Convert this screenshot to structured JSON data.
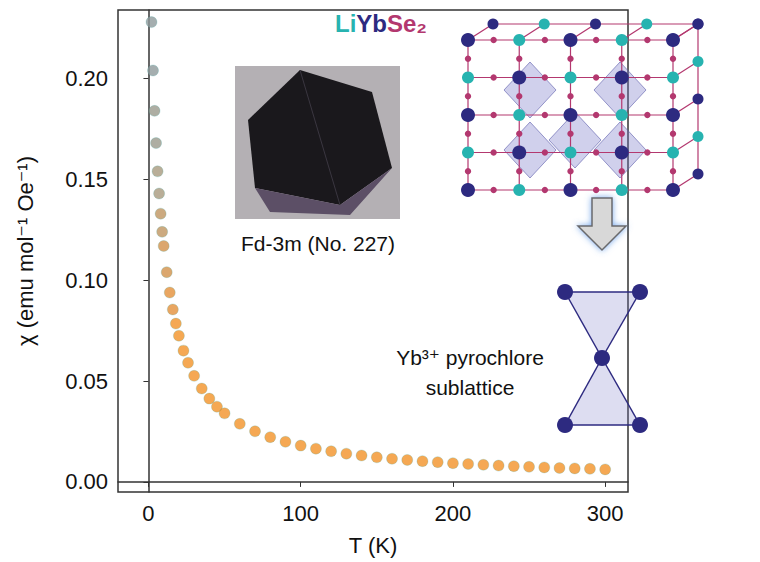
{
  "chart_data": {
    "type": "scatter",
    "title": "LiYbSe₂",
    "x_label": "T (K)",
    "y_label": "χ (emu mol⁻¹ Oe⁻¹)",
    "annotations": [
      "Fd-3m (No. 227)",
      "Yb³⁺ pyrochlore\nsublattice"
    ],
    "x": [
      2,
      3,
      4,
      5,
      6,
      7,
      8,
      9,
      10,
      12,
      14,
      16,
      18,
      20,
      23,
      26,
      30,
      35,
      40,
      45,
      50,
      60,
      70,
      80,
      90,
      100,
      110,
      120,
      130,
      140,
      150,
      160,
      170,
      180,
      190,
      200,
      210,
      220,
      230,
      240,
      250,
      260,
      270,
      280,
      290,
      300
    ],
    "values": [
      0.228,
      0.204,
      0.184,
      0.168,
      0.154,
      0.143,
      0.133,
      0.124,
      0.117,
      0.104,
      0.0939,
      0.0855,
      0.0785,
      0.0725,
      0.0651,
      0.0591,
      0.0526,
      0.0463,
      0.0413,
      0.0373,
      0.034,
      0.0288,
      0.0251,
      0.0222,
      0.0199,
      0.018,
      0.0165,
      0.0152,
      0.014,
      0.0131,
      0.0122,
      0.0115,
      0.0109,
      0.0103,
      0.0098,
      0.0093,
      0.0089,
      0.0085,
      0.0081,
      0.0078,
      0.0075,
      0.0072,
      0.0069,
      0.0067,
      0.0065,
      0.0062
    ],
    "colors": [
      "#8e9a9b",
      "#8e9a9b",
      "#9a9a8c",
      "#9a9a8c",
      "#a89a7e",
      "#a89a7e",
      "#bf9560",
      "#bf9560",
      "#d2914a",
      "#d2914a",
      "#e3903a",
      "#e3903a",
      "#f39228",
      "#f39228",
      "#f39228",
      "#f39228",
      "#f39228",
      "#f39228",
      "#f39228",
      "#f39228",
      "#f39228",
      "#f39228",
      "#f39228",
      "#f39228",
      "#f39228",
      "#f39228",
      "#f39228",
      "#f39228",
      "#f39228",
      "#f39228",
      "#f39228",
      "#f39228",
      "#f39228",
      "#f39228",
      "#f39228",
      "#f39228",
      "#f39228",
      "#f39228",
      "#f39228",
      "#f39228",
      "#f39228",
      "#f39228",
      "#f39228",
      "#f39228",
      "#f39228",
      "#f39228"
    ],
    "xlim": [
      -20,
      315
    ],
    "ylim": [
      -0.005,
      0.234
    ],
    "xticks": [
      0,
      100,
      200,
      300
    ],
    "yticks": [
      {
        "value": 0,
        "label": "0.00"
      },
      {
        "value": 0.05,
        "label": "0.05"
      },
      {
        "value": 0.1,
        "label": "0.10"
      },
      {
        "value": 0.15,
        "label": "0.15"
      },
      {
        "value": 0.2,
        "label": "0.20"
      }
    ],
    "grid": false,
    "marker": "circle"
  }
}
